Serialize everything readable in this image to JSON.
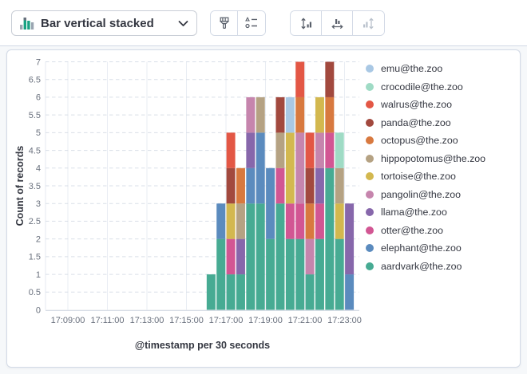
{
  "toolbar": {
    "chart_type": {
      "label": "Bar vertical stacked",
      "icon": "stacked-bar-chart-icon"
    },
    "style_buttons": [
      {
        "icon": "paintbrush-icon"
      },
      {
        "icon": "legend-settings-icon"
      }
    ],
    "axis_buttons": [
      {
        "icon": "vertical-axis-icon",
        "disabled": false
      },
      {
        "icon": "horizontal-axis-icon",
        "disabled": false
      },
      {
        "icon": "right-axis-icon",
        "disabled": true
      }
    ]
  },
  "chart_data": {
    "type": "bar",
    "stacked": true,
    "orientation": "vertical",
    "title": "",
    "ylabel": "Count of records",
    "xlabel": "@timestamp per 30 seconds",
    "ylim": [
      0,
      7
    ],
    "y_tick_step": 0.5,
    "grid": {
      "horizontal": "dashed",
      "vertical": "solid"
    },
    "legend_position": "right",
    "bucket_seconds": 30,
    "x_axis_ticks": [
      "17:09:00",
      "17:11:00",
      "17:13:00",
      "17:15:00",
      "17:17:00",
      "17:19:00",
      "17:21:00",
      "17:23:00"
    ],
    "x": [
      "17:16:00",
      "17:16:30",
      "17:17:00",
      "17:17:30",
      "17:18:00",
      "17:18:30",
      "17:19:00",
      "17:19:30",
      "17:20:00",
      "17:20:30",
      "17:21:00",
      "17:21:30",
      "17:22:00",
      "17:22:30",
      "17:23:00"
    ],
    "series": [
      {
        "name": "emu@the.zoo",
        "color": "#a9c8e4",
        "values": [
          0,
          0,
          0,
          0,
          0,
          0,
          0,
          0,
          1,
          0,
          0,
          0,
          0,
          0,
          0
        ]
      },
      {
        "name": "crocodile@the.zoo",
        "color": "#9fdbc5",
        "values": [
          0,
          0,
          0,
          0,
          0,
          0,
          0,
          0,
          0,
          0,
          0,
          0,
          0,
          1,
          0
        ]
      },
      {
        "name": "walrus@the.zoo",
        "color": "#e35745",
        "values": [
          0,
          0,
          1,
          0,
          0,
          0,
          0,
          0,
          0,
          1,
          1,
          0,
          0,
          0,
          0
        ]
      },
      {
        "name": "panda@the.zoo",
        "color": "#a2493e",
        "values": [
          0,
          0,
          1,
          0,
          0,
          0,
          0,
          1,
          0,
          0,
          1,
          0,
          1,
          0,
          0
        ]
      },
      {
        "name": "octopus@the.zoo",
        "color": "#d8793f",
        "values": [
          0,
          0,
          0,
          1,
          0,
          0,
          0,
          0,
          0,
          1,
          1,
          0,
          1,
          0,
          0
        ]
      },
      {
        "name": "hippopotomus@the.zoo",
        "color": "#b5a283",
        "values": [
          0,
          0,
          0,
          1,
          0,
          1,
          0,
          1,
          0,
          0,
          0,
          0,
          0,
          1,
          0
        ]
      },
      {
        "name": "tortoise@the.zoo",
        "color": "#d3b84f",
        "values": [
          0,
          0,
          1,
          0,
          0,
          0,
          0,
          0,
          2,
          0,
          0,
          1,
          0,
          1,
          0
        ]
      },
      {
        "name": "pangolin@the.zoo",
        "color": "#c685ad",
        "values": [
          0,
          0,
          0,
          0,
          1,
          0,
          0,
          0,
          0,
          2,
          1,
          1,
          0,
          0,
          0
        ]
      },
      {
        "name": "llama@the.zoo",
        "color": "#8767ab",
        "values": [
          0,
          0,
          0,
          1,
          1,
          0,
          0,
          0,
          0,
          0,
          0,
          1,
          0,
          0,
          2
        ]
      },
      {
        "name": "otter@the.zoo",
        "color": "#d25693",
        "values": [
          0,
          0,
          1,
          0,
          0,
          0,
          0,
          1,
          1,
          1,
          0,
          1,
          1,
          0,
          0
        ]
      },
      {
        "name": "elephant@the.zoo",
        "color": "#5b8bbe",
        "values": [
          0,
          1,
          0,
          0,
          1,
          2,
          2,
          0,
          0,
          0,
          0,
          0,
          0,
          0,
          1
        ]
      },
      {
        "name": "aardvark@the.zoo",
        "color": "#47ab93",
        "values": [
          1,
          2,
          1,
          1,
          3,
          3,
          2,
          3,
          2,
          2,
          1,
          2,
          4,
          2,
          0
        ]
      }
    ]
  }
}
